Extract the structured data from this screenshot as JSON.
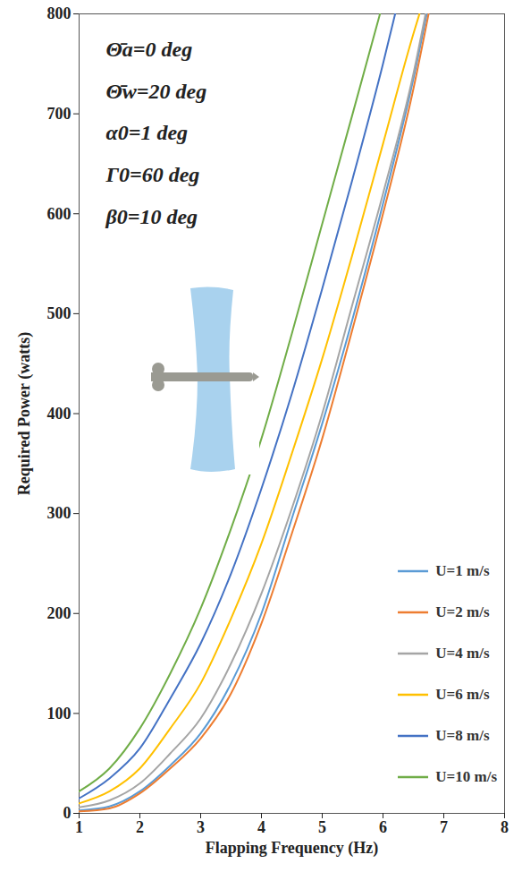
{
  "chart_data": {
    "type": "line",
    "x_label": "Flapping Frequency (Hz)",
    "y_label": "Required Power (watts)",
    "annotations": [
      "Θ̄a=0 deg",
      "Θ̄w=20 deg",
      "α0=1 deg",
      "Γ0=60 deg",
      "β0=10 deg"
    ],
    "xlim": [
      1,
      8
    ],
    "xticks": [
      1,
      2,
      3,
      4,
      5,
      6,
      7,
      8
    ],
    "ylim": [
      0,
      800
    ],
    "yticks": [
      0,
      100,
      200,
      300,
      400,
      500,
      600,
      700,
      800
    ],
    "grid": false,
    "legend": "lower right",
    "series": [
      {
        "name": "U=1 m/s",
        "color": "#5b9bd5",
        "x": [
          1,
          1.5,
          2,
          2.5,
          3,
          3.5,
          4,
          4.5,
          5,
          5.5,
          6,
          6.5,
          6.72
        ],
        "values": [
          3,
          7,
          22,
          48,
          80,
          130,
          200,
          295,
          390,
          495,
          610,
          735,
          800
        ]
      },
      {
        "name": "U=2 m/s",
        "color": "#ed7d31",
        "x": [
          1,
          1.5,
          2,
          2.5,
          3,
          3.5,
          4,
          4.5,
          5,
          5.5,
          6,
          6.5,
          6.75
        ],
        "values": [
          2,
          5,
          20,
          45,
          75,
          120,
          190,
          280,
          375,
          485,
          600,
          725,
          800
        ]
      },
      {
        "name": "U=4 m/s",
        "color": "#a5a5a5",
        "x": [
          1,
          1.5,
          2,
          2.5,
          3,
          3.5,
          4,
          4.5,
          5,
          5.5,
          6,
          6.5,
          6.7
        ],
        "values": [
          6,
          13,
          30,
          60,
          95,
          150,
          220,
          305,
          400,
          510,
          620,
          740,
          800
        ]
      },
      {
        "name": "U=6 m/s",
        "color": "#ffc000",
        "x": [
          1,
          1.5,
          2,
          2.5,
          3,
          3.5,
          4,
          4.5,
          5,
          5.5,
          6,
          6.5,
          6.6
        ],
        "values": [
          10,
          22,
          45,
          85,
          130,
          195,
          270,
          360,
          455,
          560,
          670,
          780,
          800
        ]
      },
      {
        "name": "U=8 m/s",
        "color": "#4472c4",
        "x": [
          1,
          1.5,
          2,
          2.5,
          3,
          3.5,
          4,
          4.5,
          5,
          5.5,
          6,
          6.2
        ],
        "values": [
          15,
          35,
          65,
          115,
          170,
          240,
          325,
          420,
          525,
          635,
          750,
          800
        ]
      },
      {
        "name": "U=10 m/s",
        "color": "#70ad47",
        "x": [
          1,
          1.5,
          2,
          2.5,
          3,
          3.5,
          4,
          4.5,
          5,
          5.5,
          5.95
        ],
        "values": [
          22,
          45,
          85,
          140,
          205,
          285,
          375,
          480,
          590,
          700,
          800
        ]
      }
    ]
  }
}
